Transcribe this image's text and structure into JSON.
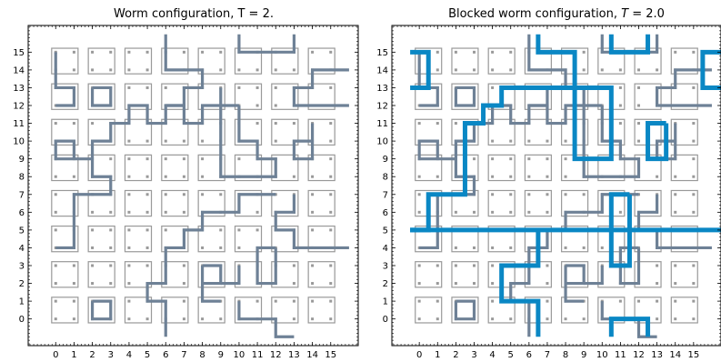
{
  "chart_data": [
    {
      "type": "lattice-path",
      "title": "Worm configuration, T = 2.",
      "xlim": [
        -1.5,
        16.5
      ],
      "ylim": [
        -1.5,
        16.5
      ],
      "xticks": [
        "0",
        "1",
        "2",
        "3",
        "4",
        "5",
        "6",
        "7",
        "8",
        "9",
        "10",
        "11",
        "12",
        "13",
        "14",
        "15"
      ],
      "yticks": [
        "0",
        "1",
        "2",
        "3",
        "4",
        "5",
        "6",
        "7",
        "8",
        "9",
        "10",
        "11",
        "12",
        "13",
        "14",
        "15"
      ],
      "grid": false,
      "colors": {
        "worm": "#6e8196",
        "plaquette": "#999999"
      },
      "worm_paths": [
        [
          [
            0,
            15
          ],
          [
            0,
            13
          ],
          [
            1,
            13
          ],
          [
            1,
            12
          ],
          [
            0,
            12
          ]
        ],
        [
          [
            2,
            13
          ],
          [
            3,
            13
          ],
          [
            3,
            12
          ],
          [
            2,
            12
          ],
          [
            2,
            13
          ]
        ],
        [
          [
            6,
            16
          ],
          [
            6,
            14
          ],
          [
            8,
            14
          ],
          [
            8,
            13
          ],
          [
            7,
            13
          ],
          [
            7,
            12
          ],
          [
            6,
            12
          ],
          [
            6,
            11
          ],
          [
            5,
            11
          ],
          [
            5,
            12
          ],
          [
            4,
            12
          ],
          [
            4,
            11
          ],
          [
            3,
            11
          ],
          [
            3,
            10
          ],
          [
            2,
            10
          ],
          [
            2,
            9
          ],
          [
            1,
            9
          ],
          [
            1,
            10
          ],
          [
            0,
            10
          ],
          [
            0,
            9
          ],
          [
            2,
            9
          ],
          [
            2,
            8
          ],
          [
            3,
            8
          ],
          [
            3,
            7
          ],
          [
            1,
            7
          ],
          [
            1,
            4
          ],
          [
            0,
            4
          ]
        ],
        [
          [
            10,
            16
          ],
          [
            10,
            15
          ],
          [
            13,
            15
          ],
          [
            13,
            16
          ]
        ],
        [
          [
            16,
            14
          ],
          [
            14,
            14
          ],
          [
            14,
            13
          ],
          [
            13,
            13
          ],
          [
            13,
            12
          ],
          [
            16,
            12
          ]
        ],
        [
          [
            9,
            13
          ],
          [
            9,
            12
          ],
          [
            8,
            12
          ],
          [
            8,
            11
          ],
          [
            7,
            11
          ],
          [
            7,
            12
          ],
          [
            6,
            12
          ]
        ],
        [
          [
            10,
            12
          ],
          [
            9,
            12
          ],
          [
            9,
            8
          ],
          [
            12,
            8
          ],
          [
            12,
            9
          ],
          [
            11,
            9
          ],
          [
            11,
            10
          ],
          [
            10,
            10
          ],
          [
            10,
            12
          ]
        ],
        [
          [
            14,
            11
          ],
          [
            14,
            10
          ],
          [
            13,
            10
          ],
          [
            13,
            9
          ],
          [
            14,
            9
          ],
          [
            14,
            11
          ]
        ],
        [
          [
            12,
            7
          ],
          [
            10,
            7
          ],
          [
            10,
            6
          ],
          [
            8,
            6
          ],
          [
            8,
            5
          ],
          [
            7,
            5
          ],
          [
            7,
            4
          ],
          [
            6,
            4
          ],
          [
            6,
            2
          ],
          [
            5,
            2
          ],
          [
            5,
            1
          ],
          [
            6,
            1
          ],
          [
            6,
            0
          ],
          [
            6,
            -1
          ]
        ],
        [
          [
            13,
            7
          ],
          [
            13,
            6
          ],
          [
            12,
            6
          ],
          [
            12,
            5
          ],
          [
            13,
            5
          ],
          [
            13,
            4
          ],
          [
            16,
            4
          ]
        ],
        [
          [
            12,
            4
          ],
          [
            11,
            4
          ],
          [
            11,
            2
          ],
          [
            12,
            2
          ],
          [
            12,
            4
          ]
        ],
        [
          [
            8,
            3
          ],
          [
            9,
            3
          ],
          [
            9,
            2
          ],
          [
            8,
            2
          ],
          [
            8,
            1
          ],
          [
            9,
            1
          ],
          [
            8,
            1
          ],
          [
            8,
            3
          ]
        ],
        [
          [
            10,
            3
          ],
          [
            10,
            2
          ],
          [
            9,
            2
          ]
        ],
        [
          [
            2,
            1
          ],
          [
            3,
            1
          ],
          [
            3,
            0
          ],
          [
            2,
            0
          ],
          [
            2,
            1
          ]
        ],
        [
          [
            10,
            1
          ],
          [
            10,
            0
          ],
          [
            12,
            0
          ],
          [
            12,
            -1
          ],
          [
            13,
            -1
          ]
        ]
      ]
    },
    {
      "type": "lattice-path",
      "title": "Blocked worm configuration, T = 2.0",
      "title_parts": {
        "prefix": "Blocked worm configuration, ",
        "symbol": "T",
        "suffix": " =  2.0"
      },
      "xlim": [
        -1.5,
        16.5
      ],
      "ylim": [
        -1.5,
        16.5
      ],
      "xticks": [
        "0",
        "1",
        "2",
        "3",
        "4",
        "5",
        "6",
        "7",
        "8",
        "9",
        "10",
        "11",
        "12",
        "13",
        "14",
        "15"
      ],
      "yticks": [
        "0",
        "1",
        "2",
        "3",
        "4",
        "5",
        "6",
        "7",
        "8",
        "9",
        "10",
        "11",
        "12",
        "13",
        "14",
        "15"
      ],
      "grid": false,
      "colors": {
        "worm": "#6e8196",
        "plaquette": "#999999",
        "blocked": "#0a87c4"
      },
      "worm_paths": [
        [
          [
            0,
            15
          ],
          [
            0,
            13
          ],
          [
            1,
            13
          ],
          [
            1,
            12
          ],
          [
            0,
            12
          ]
        ],
        [
          [
            2,
            13
          ],
          [
            3,
            13
          ],
          [
            3,
            12
          ],
          [
            2,
            12
          ],
          [
            2,
            13
          ]
        ],
        [
          [
            6,
            16
          ],
          [
            6,
            14
          ],
          [
            8,
            14
          ],
          [
            8,
            13
          ],
          [
            7,
            13
          ],
          [
            7,
            12
          ],
          [
            6,
            12
          ],
          [
            6,
            11
          ],
          [
            5,
            11
          ],
          [
            5,
            12
          ],
          [
            4,
            12
          ],
          [
            4,
            11
          ],
          [
            3,
            11
          ],
          [
            3,
            10
          ],
          [
            2,
            10
          ],
          [
            2,
            9
          ],
          [
            1,
            9
          ],
          [
            1,
            10
          ],
          [
            0,
            10
          ],
          [
            0,
            9
          ],
          [
            2,
            9
          ],
          [
            2,
            8
          ],
          [
            3,
            8
          ],
          [
            3,
            7
          ],
          [
            1,
            7
          ],
          [
            1,
            4
          ],
          [
            0,
            4
          ]
        ],
        [
          [
            10,
            16
          ],
          [
            10,
            15
          ],
          [
            13,
            15
          ],
          [
            13,
            16
          ]
        ],
        [
          [
            16,
            14
          ],
          [
            14,
            14
          ],
          [
            14,
            13
          ],
          [
            13,
            13
          ],
          [
            13,
            12
          ],
          [
            16,
            12
          ]
        ],
        [
          [
            9,
            13
          ],
          [
            9,
            12
          ],
          [
            8,
            12
          ],
          [
            8,
            11
          ],
          [
            7,
            11
          ],
          [
            7,
            12
          ],
          [
            6,
            12
          ]
        ],
        [
          [
            10,
            12
          ],
          [
            9,
            12
          ],
          [
            9,
            8
          ],
          [
            12,
            8
          ],
          [
            12,
            9
          ],
          [
            11,
            9
          ],
          [
            11,
            10
          ],
          [
            10,
            10
          ],
          [
            10,
            12
          ]
        ],
        [
          [
            14,
            11
          ],
          [
            14,
            10
          ],
          [
            13,
            10
          ],
          [
            13,
            9
          ],
          [
            14,
            9
          ],
          [
            14,
            11
          ]
        ],
        [
          [
            12,
            7
          ],
          [
            10,
            7
          ],
          [
            10,
            6
          ],
          [
            8,
            6
          ],
          [
            8,
            5
          ],
          [
            7,
            5
          ],
          [
            7,
            4
          ],
          [
            6,
            4
          ],
          [
            6,
            2
          ],
          [
            5,
            2
          ],
          [
            5,
            1
          ],
          [
            6,
            1
          ],
          [
            6,
            0
          ],
          [
            6,
            -1
          ]
        ],
        [
          [
            13,
            7
          ],
          [
            13,
            6
          ],
          [
            12,
            6
          ],
          [
            12,
            5
          ],
          [
            13,
            5
          ],
          [
            13,
            4
          ],
          [
            16,
            4
          ]
        ],
        [
          [
            12,
            4
          ],
          [
            11,
            4
          ],
          [
            11,
            2
          ],
          [
            12,
            2
          ],
          [
            12,
            4
          ]
        ],
        [
          [
            8,
            3
          ],
          [
            9,
            3
          ],
          [
            9,
            2
          ],
          [
            8,
            2
          ],
          [
            8,
            1
          ],
          [
            9,
            1
          ],
          [
            8,
            1
          ],
          [
            8,
            3
          ]
        ],
        [
          [
            10,
            3
          ],
          [
            10,
            2
          ],
          [
            9,
            2
          ]
        ],
        [
          [
            2,
            1
          ],
          [
            3,
            1
          ],
          [
            3,
            0
          ],
          [
            2,
            0
          ],
          [
            2,
            1
          ]
        ],
        [
          [
            10,
            1
          ],
          [
            10,
            0
          ],
          [
            12,
            0
          ],
          [
            12,
            -1
          ],
          [
            13,
            -1
          ]
        ]
      ],
      "blocked_paths": [
        [
          [
            -0.5,
            15
          ],
          [
            0.5,
            15
          ],
          [
            0.5,
            13
          ],
          [
            -0.5,
            13
          ]
        ],
        [
          [
            6.5,
            16
          ],
          [
            6.5,
            15
          ],
          [
            8.5,
            15
          ],
          [
            8.5,
            9
          ],
          [
            10.5,
            9
          ],
          [
            10.5,
            13
          ],
          [
            4.5,
            13
          ],
          [
            4.5,
            12
          ],
          [
            3.5,
            12
          ],
          [
            3.5,
            11
          ],
          [
            2.5,
            11
          ],
          [
            2.5,
            7
          ],
          [
            0.5,
            7
          ],
          [
            0.5,
            5
          ],
          [
            -0.5,
            5
          ]
        ],
        [
          [
            10.5,
            16
          ],
          [
            10.5,
            15
          ],
          [
            12.5,
            15
          ],
          [
            12.5,
            16
          ]
        ],
        [
          [
            16.5,
            15
          ],
          [
            15.5,
            15
          ],
          [
            15.5,
            13
          ],
          [
            16.5,
            13
          ]
        ],
        [
          [
            13.5,
            11
          ],
          [
            13.5,
            9
          ],
          [
            12.5,
            9
          ],
          [
            12.5,
            11
          ],
          [
            13.5,
            11
          ]
        ],
        [
          [
            11.5,
            7
          ],
          [
            10.5,
            7
          ],
          [
            10.5,
            3
          ],
          [
            11.5,
            3
          ],
          [
            11.5,
            7
          ]
        ],
        [
          [
            -0.5,
            5
          ],
          [
            16.5,
            5
          ]
        ],
        [
          [
            6.5,
            5
          ],
          [
            6.5,
            3
          ],
          [
            4.5,
            3
          ],
          [
            4.5,
            1
          ],
          [
            6.5,
            1
          ],
          [
            6.5,
            -1
          ]
        ],
        [
          [
            10.5,
            -1
          ],
          [
            10.5,
            0
          ],
          [
            12.5,
            0
          ],
          [
            12.5,
            -1
          ]
        ]
      ]
    }
  ]
}
